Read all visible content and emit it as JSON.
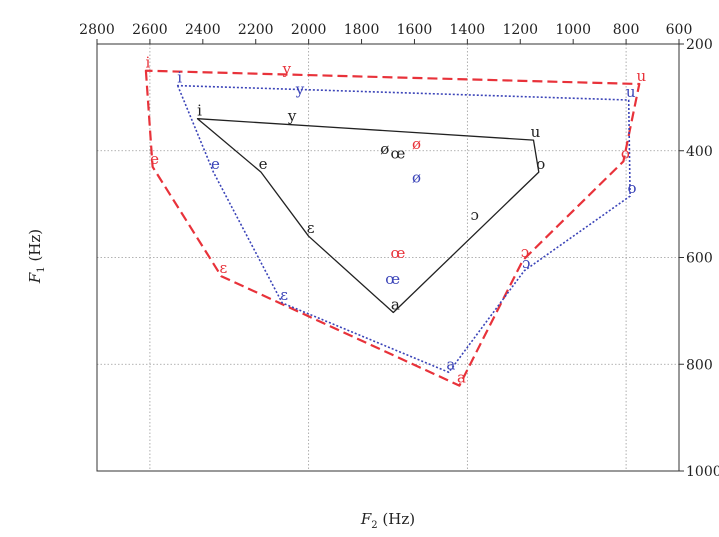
{
  "chart_data": {
    "type": "scatter",
    "title": "",
    "xlabel_main": "F",
    "xlabel_sub": "2",
    "xlabel_unit": " (Hz)",
    "ylabel_main": "F",
    "ylabel_sub": "1",
    "ylabel_unit": " (Hz)",
    "xlim": [
      2800,
      600
    ],
    "ylim": [
      200,
      1000
    ],
    "x_ticks": [
      2800,
      2600,
      2400,
      2200,
      2000,
      1800,
      1600,
      1400,
      1200,
      1000,
      800,
      600
    ],
    "y_ticks": [
      200,
      400,
      600,
      800,
      1000
    ],
    "grid_x": [
      2600,
      2000,
      1400,
      800
    ],
    "grid_y": [
      400,
      600,
      800
    ],
    "series": [
      {
        "color": "#e8323a",
        "line_style": "dashed",
        "points": [
          {
            "label": "i",
            "x": 2615,
            "y": 250
          },
          {
            "label": "e",
            "x": 2590,
            "y": 430
          },
          {
            "label": "ɛ",
            "x": 2330,
            "y": 635
          },
          {
            "label": "a",
            "x": 1430,
            "y": 840
          },
          {
            "label": "ɔ",
            "x": 1190,
            "y": 605
          },
          {
            "label": "o",
            "x": 810,
            "y": 420
          },
          {
            "label": "u",
            "x": 750,
            "y": 275
          }
        ],
        "extra_labels": [
          {
            "label": "y",
            "x": 2090,
            "y": 262
          },
          {
            "label": "ø",
            "x": 1600,
            "y": 402
          },
          {
            "label": "œ",
            "x": 1670,
            "y": 607
          }
        ]
      },
      {
        "color": "#3b44b8",
        "line_style": "dotted",
        "points": [
          {
            "label": "i",
            "x": 2495,
            "y": 278
          },
          {
            "label": "e",
            "x": 2360,
            "y": 440
          },
          {
            "label": "ɛ",
            "x": 2100,
            "y": 685
          },
          {
            "label": "a",
            "x": 1470,
            "y": 815
          },
          {
            "label": "ɔ",
            "x": 1185,
            "y": 625
          },
          {
            "label": "o",
            "x": 785,
            "y": 485
          },
          {
            "label": "u",
            "x": 790,
            "y": 305
          }
        ],
        "extra_labels": [
          {
            "label": "y",
            "x": 2040,
            "y": 300
          },
          {
            "label": "ø",
            "x": 1600,
            "y": 465
          },
          {
            "label": "œ",
            "x": 1690,
            "y": 655
          }
        ]
      },
      {
        "color": "#222222",
        "line_style": "solid",
        "points": [
          {
            "label": "i",
            "x": 2420,
            "y": 340
          },
          {
            "label": "e",
            "x": 2180,
            "y": 440
          },
          {
            "label": "ɛ",
            "x": 2000,
            "y": 560
          },
          {
            "label": "a",
            "x": 1680,
            "y": 703
          },
          {
            "label": "o",
            "x": 1130,
            "y": 440
          },
          {
            "label": "u",
            "x": 1150,
            "y": 380
          }
        ],
        "extra_labels": [
          {
            "label": "y",
            "x": 2070,
            "y": 350
          },
          {
            "label": "ø",
            "x": 1720,
            "y": 412
          },
          {
            "label": "œ",
            "x": 1670,
            "y": 420
          },
          {
            "label": "ɔ",
            "x": 1380,
            "y": 535
          }
        ]
      }
    ]
  }
}
